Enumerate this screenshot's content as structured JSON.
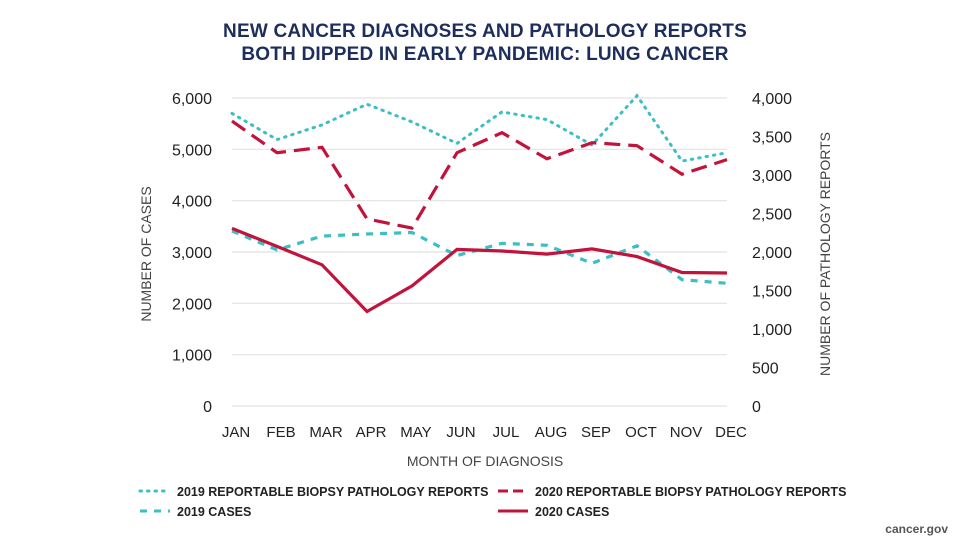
{
  "chart_data": {
    "type": "line",
    "title": [
      "NEW CANCER DIAGNOSES AND PATHOLOGY REPORTS",
      "BOTH DIPPED IN EARLY PANDEMIC: LUNG CANCER"
    ],
    "xlabel": "MONTH OF DIAGNOSIS",
    "ylabel_left": "NUMBER OF CASES",
    "ylabel_right": "NUMBER OF PATHOLOGY REPORTS",
    "categories": [
      "JAN",
      "FEB",
      "MAR",
      "APR",
      "MAY",
      "JUN",
      "JUL",
      "AUG",
      "SEP",
      "OCT",
      "NOV",
      "DEC"
    ],
    "ylim_left": [
      0,
      6000
    ],
    "yticks_left": [
      "0",
      "1,000",
      "2,000",
      "3,000",
      "4,000",
      "5,000",
      "6,000"
    ],
    "ylim_right": [
      0,
      4000
    ],
    "yticks_right": [
      "0",
      "500",
      "1,000",
      "1,500",
      "2,000",
      "2,500",
      "3,000",
      "3,500",
      "4,000"
    ],
    "grid": true,
    "legend_position": "bottom",
    "series": [
      {
        "name": "2019 REPORTABLE BIOPSY PATHOLOGY REPORTS",
        "axis": "right",
        "style": "dotted",
        "color": "#3bbfc4",
        "values": [
          3800,
          3460,
          3650,
          3920,
          3690,
          3410,
          3820,
          3720,
          3390,
          4030,
          3180,
          3290
        ]
      },
      {
        "name": "2020 REPORTABLE BIOPSY PATHOLOGY REPORTS",
        "axis": "right",
        "style": "dashed",
        "color": "#c0143c",
        "values": [
          3700,
          3290,
          3360,
          2430,
          2310,
          3290,
          3550,
          3210,
          3420,
          3380,
          3010,
          3200
        ]
      },
      {
        "name": "2019 CASES",
        "axis": "left",
        "style": "short-dashed",
        "color": "#3bbfc4",
        "values": [
          3410,
          3040,
          3310,
          3350,
          3380,
          2930,
          3170,
          3130,
          2780,
          3120,
          2460,
          2390
        ]
      },
      {
        "name": "2020 CASES",
        "axis": "left",
        "style": "solid",
        "color": "#c0143c",
        "values": [
          3460,
          3110,
          2750,
          1840,
          2340,
          3050,
          3020,
          2960,
          3060,
          2910,
          2600,
          2590
        ]
      }
    ]
  },
  "source": "cancer.gov"
}
